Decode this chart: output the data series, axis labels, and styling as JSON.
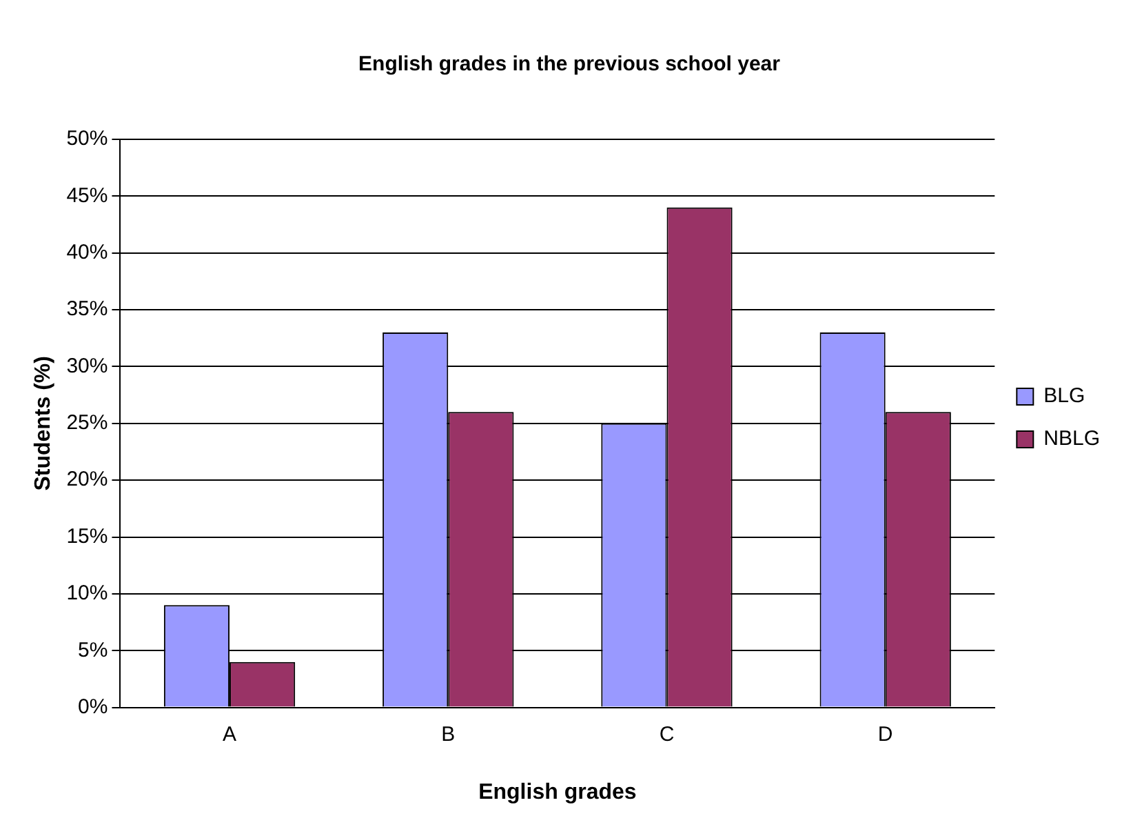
{
  "chart_data": {
    "type": "bar",
    "title": "English grades in the previous school year",
    "xlabel": "English grades",
    "ylabel": "Students (%)",
    "categories": [
      "A",
      "B",
      "C",
      "D"
    ],
    "series": [
      {
        "name": "BLG",
        "color": "#9999ff",
        "values": [
          9,
          33,
          25,
          33
        ]
      },
      {
        "name": "NBLG",
        "color": "#993366",
        "values": [
          4,
          26,
          44,
          26
        ]
      }
    ],
    "ylim": [
      0,
      50
    ],
    "yticks": [
      {
        "value": 0,
        "label": "0%"
      },
      {
        "value": 5,
        "label": "5%"
      },
      {
        "value": 10,
        "label": "10%"
      },
      {
        "value": 15,
        "label": "15%"
      },
      {
        "value": 20,
        "label": "20%"
      },
      {
        "value": 25,
        "label": "25%"
      },
      {
        "value": 30,
        "label": "30%"
      },
      {
        "value": 35,
        "label": "35%"
      },
      {
        "value": 40,
        "label": "40%"
      },
      {
        "value": 45,
        "label": "45%"
      },
      {
        "value": 50,
        "label": "50%"
      }
    ],
    "grid": "y",
    "legend": "right"
  }
}
